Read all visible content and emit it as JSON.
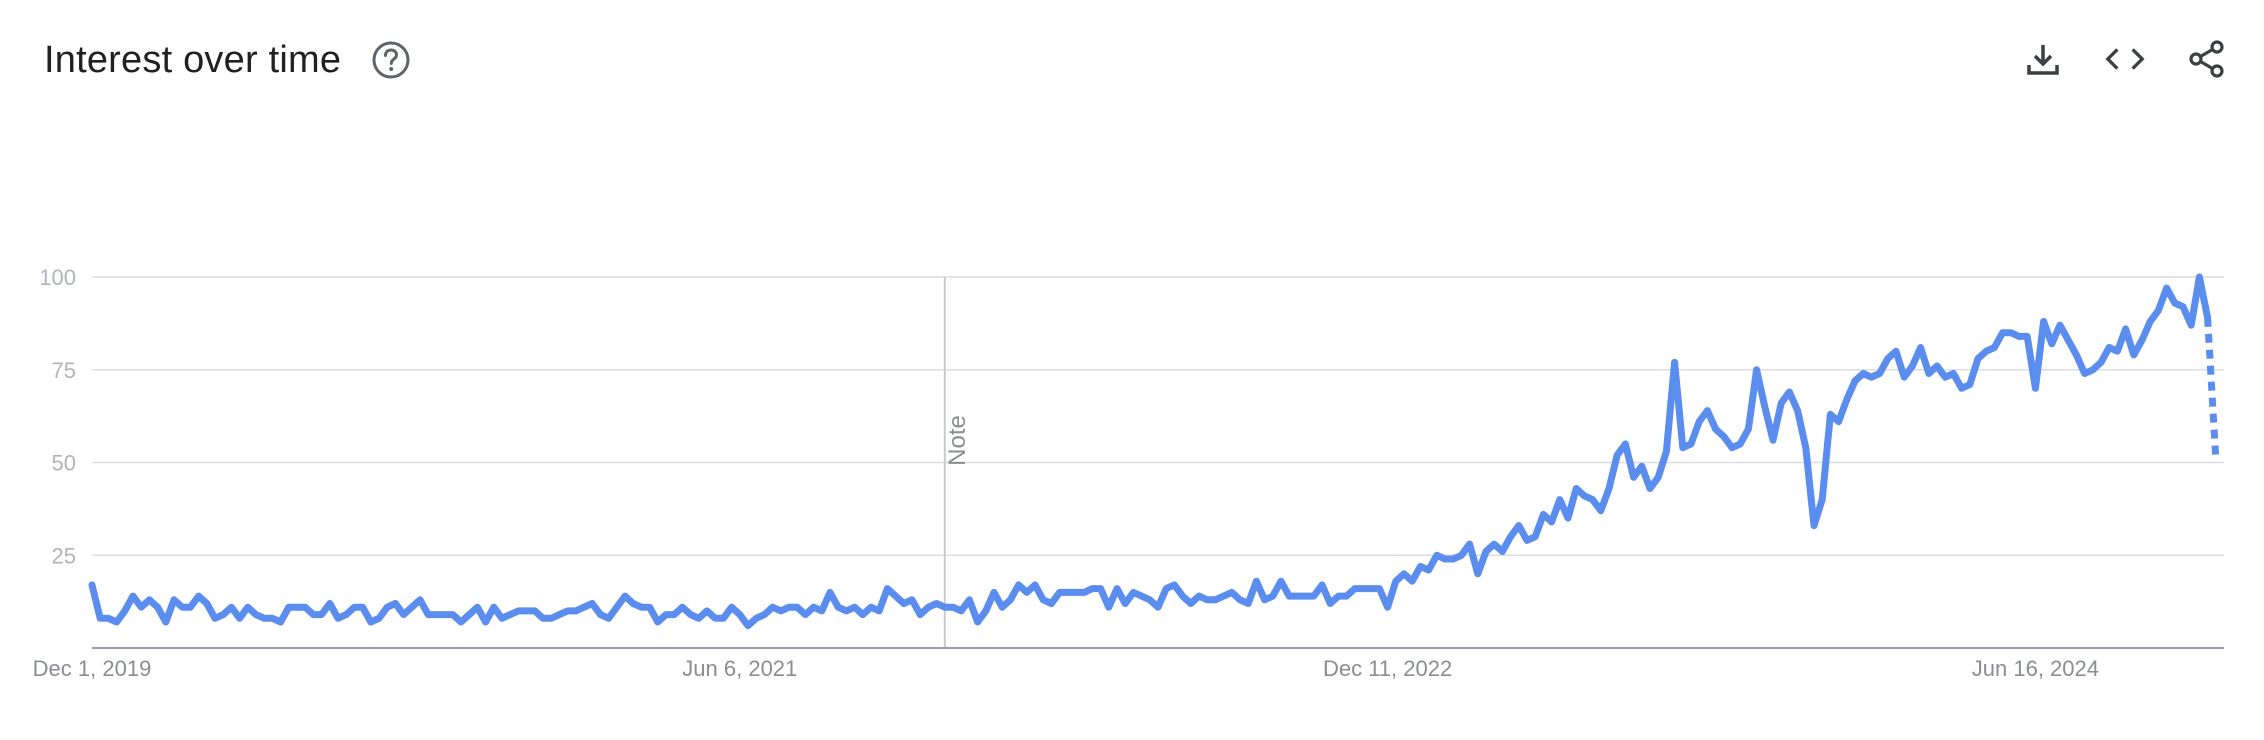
{
  "header": {
    "title": "Interest over time",
    "help_icon": "help-circle-icon"
  },
  "toolbar": {
    "icons": [
      "download-icon",
      "embed-code-icon",
      "share-icon"
    ]
  },
  "chart_data": {
    "type": "line",
    "title": "Interest over time",
    "xlabel": "",
    "ylabel": "",
    "ylim": [
      0,
      100
    ],
    "yticks": [
      25,
      50,
      75,
      100
    ],
    "x_tick_labels": [
      "Dec 1, 2019",
      "Jun 6, 2021",
      "Dec 11, 2022",
      "Jun 16, 2024"
    ],
    "x_start": "2019-12-01",
    "x_end": "2024-11-24",
    "interval": "weekly",
    "grid": true,
    "line_color": "#5b8def",
    "annotation": {
      "label": "Note",
      "date": "2021-11-28"
    },
    "partial_last_point": true,
    "series": [
      {
        "values": [
          17,
          8,
          8,
          7,
          10,
          14,
          11,
          13,
          11,
          7,
          13,
          11,
          11,
          14,
          12,
          8,
          9,
          11,
          8,
          11,
          9,
          8,
          8,
          7,
          11,
          11,
          11,
          9,
          9,
          12,
          8,
          9,
          11,
          11,
          7,
          8,
          11,
          12,
          9,
          11,
          13,
          9,
          9,
          9,
          9,
          7,
          9,
          11,
          7,
          11,
          8,
          9,
          10,
          10,
          10,
          8,
          8,
          9,
          10,
          10,
          11,
          12,
          9,
          8,
          11,
          14,
          12,
          11,
          11,
          7,
          9,
          9,
          11,
          9,
          8,
          10,
          8,
          8,
          11,
          9,
          6,
          8,
          9,
          11,
          10,
          11,
          11,
          9,
          11,
          10,
          15,
          11,
          10,
          11,
          9,
          11,
          10,
          16,
          14,
          12,
          13,
          9,
          11,
          12,
          11,
          11,
          10,
          13,
          7,
          10,
          15,
          11,
          13,
          17,
          15,
          17,
          13,
          12,
          15,
          15,
          15,
          15,
          16,
          16,
          11,
          16,
          12,
          15,
          14,
          13,
          11,
          16,
          17,
          14,
          12,
          14,
          13,
          13,
          14,
          15,
          13,
          12,
          18,
          13,
          14,
          18,
          14,
          14,
          14,
          14,
          17,
          12,
          14,
          14,
          16,
          16,
          16,
          16,
          11,
          18,
          20,
          18,
          22,
          21,
          25,
          24,
          24,
          25,
          28,
          20,
          26,
          28,
          26,
          30,
          33,
          29,
          30,
          36,
          34,
          40,
          35,
          43,
          41,
          40,
          37,
          43,
          52,
          55,
          46,
          49,
          43,
          46,
          53,
          77,
          54,
          55,
          61,
          64,
          59,
          57,
          54,
          55,
          59,
          75,
          65,
          56,
          66,
          69,
          64,
          54,
          33,
          40,
          63,
          61,
          67,
          72,
          74,
          73,
          74,
          78,
          80,
          73,
          76,
          81,
          74,
          76,
          73,
          74,
          70,
          71,
          78,
          80,
          81,
          85,
          85,
          84,
          84,
          70,
          88,
          82,
          87,
          83,
          79,
          74,
          75,
          77,
          81,
          80,
          86,
          79,
          83,
          88,
          91,
          97,
          93,
          92,
          87,
          100,
          89,
          51
        ]
      }
    ]
  }
}
